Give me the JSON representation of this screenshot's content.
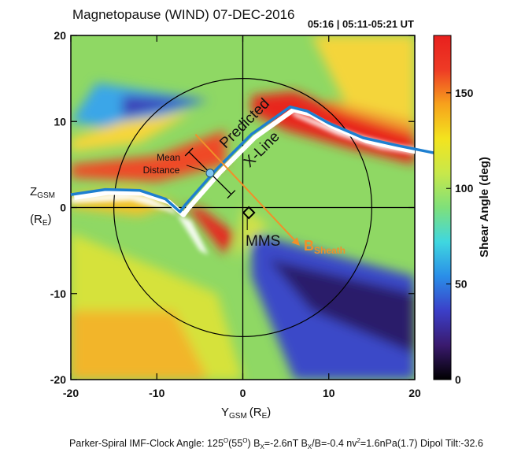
{
  "chart_data": {
    "type": "heatmap",
    "title": "Magnetopause (WIND) 07-DEC-2016",
    "time_label": "05:16 | 05:11-05:21 UT",
    "xlabel": "Y",
    "xlabel_sub": "GSM",
    "xlabel_unit": "(R",
    "xlabel_unit_sub": "E",
    "xlabel_unit_close": ")",
    "ylabel": "Z",
    "ylabel_sub": "GSM",
    "ylabel_unit": "(R",
    "ylabel_unit_sub": "E",
    "ylabel_unit_close": ")",
    "xlim": [
      -20,
      20
    ],
    "ylim": [
      -20,
      20
    ],
    "xticks": [
      -20,
      -10,
      0,
      10,
      20
    ],
    "yticks": [
      20,
      10,
      0,
      -10,
      -20
    ],
    "xtick_labels": [
      "-20",
      "-10",
      "0",
      "10",
      "20"
    ],
    "ytick_labels": [
      "20",
      "10",
      "0",
      "-10",
      "-20"
    ],
    "colorbar": {
      "label": "Shear Angle (deg)",
      "range": [
        0,
        180
      ],
      "ticks": [
        0,
        50,
        100,
        150
      ],
      "tick_labels": [
        "0",
        "50",
        "100",
        "150"
      ],
      "colors": [
        "#000000",
        "#3a1a6e",
        "#3b3fc8",
        "#2a8ee8",
        "#3fd7e0",
        "#7fe07a",
        "#c8e84a",
        "#f3e41e",
        "#f7a21c",
        "#ee3b25",
        "#e8201e"
      ]
    },
    "circle_radius_RE": 15,
    "predicted_xline": {
      "label_line1": "Predicted",
      "label_line2": "X-Line",
      "points": [
        [
          -20,
          1.5
        ],
        [
          -16,
          2.1
        ],
        [
          -12,
          2.0
        ],
        [
          -9,
          1.0
        ],
        [
          -7.3,
          -0.5
        ],
        [
          -6.7,
          0.3
        ],
        [
          -3,
          4.5
        ],
        [
          1,
          8.5
        ],
        [
          5.5,
          11.7
        ],
        [
          7.5,
          11.2
        ],
        [
          10,
          9.8
        ],
        [
          14,
          8.1
        ],
        [
          18,
          7.2
        ],
        [
          22.5,
          6.3
        ]
      ]
    },
    "mean_distance": {
      "label_line1": "Mean",
      "label_line2": "Distance",
      "center": [
        -3.8,
        4.0
      ]
    },
    "mms": {
      "label": "MMS",
      "position": [
        0.7,
        -0.6
      ]
    },
    "bsheath": {
      "label": "B",
      "label_sub": "Sheath",
      "start": [
        -5.5,
        8.5
      ],
      "end": [
        6.5,
        -4.3
      ]
    },
    "footer": {
      "part1": "Parker-Spiral  IMF-Clock Angle: 125",
      "sup1": "O",
      "part2": "(55",
      "sup2": "O",
      "part3": ")   B",
      "sub_x": "X",
      "part4": "=-2.6nT   B",
      "sub_x2": "X",
      "part5": "/B=-0.4   nv",
      "sup3": "2",
      "part6": "=1.6nPa(1.7)  Dipol Tilt:-32.6"
    }
  }
}
